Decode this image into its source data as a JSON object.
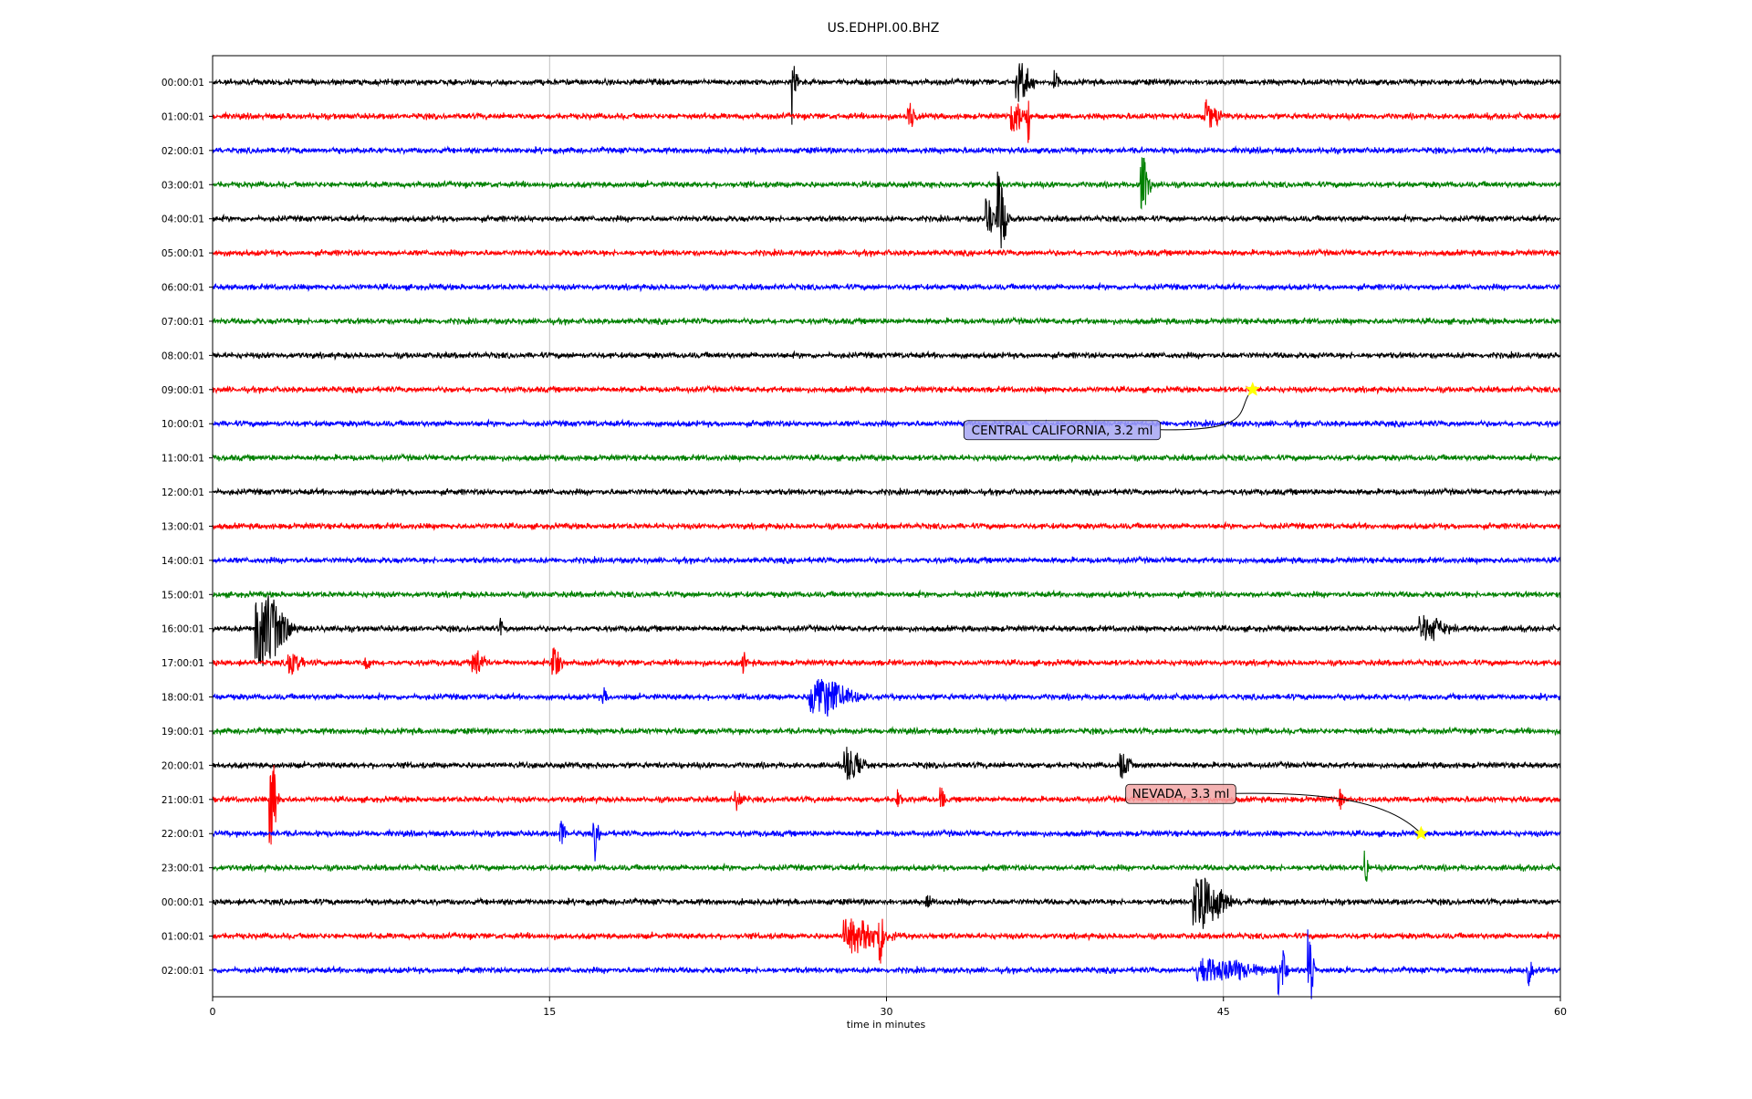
{
  "chart_data": {
    "type": "line",
    "title": "US.EDHPI.00.BHZ",
    "xlabel": "time in minutes",
    "ylabel": "",
    "xlim": [
      0,
      60
    ],
    "x_ticks": [
      0,
      15,
      30,
      45,
      60
    ],
    "x_tick_labels": [
      "0",
      "15",
      "30",
      "45",
      "60"
    ],
    "vertical_grid_at": [
      15,
      30,
      45
    ],
    "color_cycle": [
      "#000000",
      "#ff0000",
      "#0000ff",
      "#008000"
    ],
    "rows": [
      {
        "label": "00:00:01",
        "bursts": [
          {
            "t": 25.8,
            "amp": 34,
            "dur": 0.3
          },
          {
            "t": 35.9,
            "amp": 14,
            "dur": 0.9
          },
          {
            "t": 37.5,
            "amp": 9,
            "dur": 0.3
          }
        ]
      },
      {
        "label": "01:00:01",
        "bursts": [
          {
            "t": 31.0,
            "amp": 9,
            "dur": 0.5
          },
          {
            "t": 35.7,
            "amp": 12,
            "dur": 1.0
          },
          {
            "t": 36.3,
            "amp": 18,
            "dur": 0.15
          },
          {
            "t": 44.3,
            "amp": 11,
            "dur": 0.8
          }
        ]
      },
      {
        "label": "02:00:01",
        "bursts": []
      },
      {
        "label": "03:00:01",
        "bursts": [
          {
            "t": 41.4,
            "amp": 20,
            "dur": 0.5
          }
        ]
      },
      {
        "label": "04:00:01",
        "bursts": [
          {
            "t": 34.5,
            "amp": 14,
            "dur": 0.5
          },
          {
            "t": 35.0,
            "amp": 34,
            "dur": 0.5
          }
        ]
      },
      {
        "label": "05:00:01",
        "bursts": []
      },
      {
        "label": "06:00:01",
        "bursts": []
      },
      {
        "label": "07:00:01",
        "bursts": []
      },
      {
        "label": "08:00:01",
        "bursts": []
      },
      {
        "label": "09:00:01",
        "bursts": []
      },
      {
        "label": "10:00:01",
        "bursts": []
      },
      {
        "label": "11:00:01",
        "bursts": []
      },
      {
        "label": "12:00:01",
        "bursts": []
      },
      {
        "label": "13:00:01",
        "bursts": []
      },
      {
        "label": "14:00:01",
        "bursts": []
      },
      {
        "label": "15:00:01",
        "bursts": []
      },
      {
        "label": "16:00:01",
        "bursts": [
          {
            "t": 2.2,
            "amp": 26,
            "dur": 1.6
          },
          {
            "t": 12.8,
            "amp": 8,
            "dur": 0.2
          },
          {
            "t": 54.0,
            "amp": 9,
            "dur": 1.5
          }
        ]
      },
      {
        "label": "17:00:01",
        "bursts": [
          {
            "t": 3.5,
            "amp": 8,
            "dur": 0.8
          },
          {
            "t": 6.8,
            "amp": 7,
            "dur": 0.3
          },
          {
            "t": 11.7,
            "amp": 9,
            "dur": 0.8
          },
          {
            "t": 15.2,
            "amp": 10,
            "dur": 0.6
          },
          {
            "t": 23.6,
            "amp": 7,
            "dur": 0.3
          }
        ]
      },
      {
        "label": "18:00:01",
        "bursts": [
          {
            "t": 17.4,
            "amp": 7,
            "dur": 0.3
          },
          {
            "t": 27.0,
            "amp": 14,
            "dur": 2.2
          }
        ]
      },
      {
        "label": "19:00:01",
        "bursts": []
      },
      {
        "label": "20:00:01",
        "bursts": [
          {
            "t": 28.3,
            "amp": 12,
            "dur": 1.0
          },
          {
            "t": 40.5,
            "amp": 9,
            "dur": 0.6
          }
        ]
      },
      {
        "label": "21:00:01",
        "bursts": [
          {
            "t": 2.6,
            "amp": 35,
            "dur": 0.4
          },
          {
            "t": 23.3,
            "amp": 8,
            "dur": 0.4
          },
          {
            "t": 30.5,
            "amp": 9,
            "dur": 0.3
          },
          {
            "t": 32.4,
            "amp": 9,
            "dur": 0.3
          },
          {
            "t": 50.2,
            "amp": 7,
            "dur": 0.3
          }
        ]
      },
      {
        "label": "22:00:01",
        "bursts": [
          {
            "t": 15.5,
            "amp": 12,
            "dur": 0.3
          },
          {
            "t": 17.0,
            "amp": 18,
            "dur": 0.3
          }
        ]
      },
      {
        "label": "23:00:01",
        "bursts": [
          {
            "t": 51.3,
            "amp": 18,
            "dur": 0.2
          }
        ]
      },
      {
        "label": "00:00:01",
        "bursts": [
          {
            "t": 44.0,
            "amp": 18,
            "dur": 1.8
          },
          {
            "t": 31.8,
            "amp": 7,
            "dur": 0.3
          }
        ]
      },
      {
        "label": "01:00:01",
        "bursts": [
          {
            "t": 28.5,
            "amp": 12,
            "dur": 2.2
          },
          {
            "t": 29.7,
            "amp": 16,
            "dur": 0.4
          }
        ]
      },
      {
        "label": "02:00:01",
        "bursts": [
          {
            "t": 44.5,
            "amp": 8,
            "dur": 3.5
          },
          {
            "t": 47.5,
            "amp": 18,
            "dur": 0.5
          },
          {
            "t": 48.8,
            "amp": 34,
            "dur": 0.3
          },
          {
            "t": 58.6,
            "amp": 10,
            "dur": 0.3
          }
        ]
      }
    ],
    "events": [
      {
        "label": "CENTRAL CALIFORNIA, 3.2 ml",
        "row": 9,
        "t": 46.3,
        "box_color": "#a6a6f2"
      },
      {
        "label": "NEVADA, 3.3 ml",
        "row": 22,
        "t": 53.8,
        "box_color": "#f2a6a6"
      }
    ],
    "event_marker_color": "#ffff00"
  }
}
